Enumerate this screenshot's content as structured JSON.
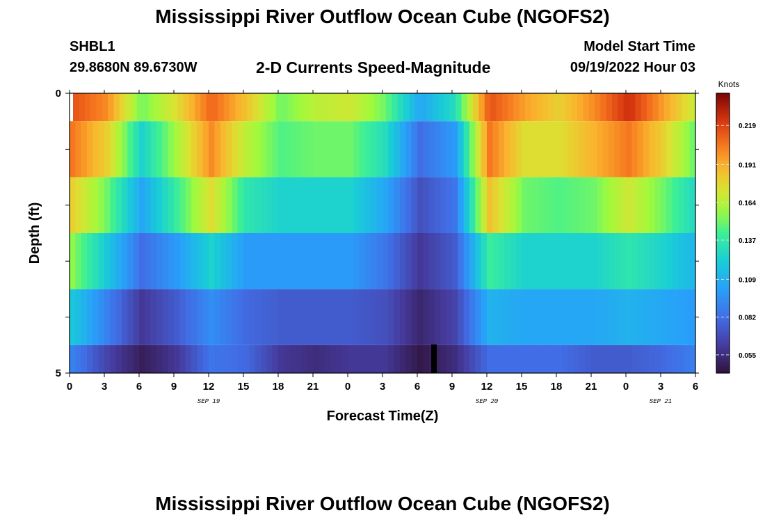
{
  "header": {
    "title": "Mississippi River Outflow Ocean Cube (NGOFS2)",
    "station": "SHBL1",
    "coordinates": "29.8680N  89.6730W",
    "subtitle": "2-D Currents Speed-Magnitude",
    "model_start_label": "Model Start Time",
    "model_start_value": "09/19/2022 Hour 03"
  },
  "footer": {
    "next_title": "Mississippi River Outflow Ocean Cube (NGOFS2)"
  },
  "chart_data": {
    "type": "heatmap",
    "title": "2-D Currents Speed-Magnitude",
    "xlabel": "Forecast Time(Z)",
    "ylabel": "Depth (ft)",
    "x_tick_labels": [
      "0",
      "3",
      "6",
      "9",
      "12",
      "15",
      "18",
      "21",
      "0",
      "3",
      "6",
      "9",
      "12",
      "15",
      "18",
      "21",
      "0",
      "3",
      "6"
    ],
    "x_tick_hours": [
      0,
      3,
      6,
      9,
      12,
      15,
      18,
      21,
      24,
      27,
      30,
      33,
      36,
      39,
      42,
      45,
      48,
      51,
      54
    ],
    "date_labels": [
      {
        "label": "SEP 19",
        "hour": 12
      },
      {
        "label": "SEP 20",
        "hour": 36
      },
      {
        "label": "SEP 21",
        "hour": 51
      }
    ],
    "xlim": [
      0,
      54
    ],
    "y_tick_labels": [
      "0",
      "5"
    ],
    "ylim": [
      0,
      5
    ],
    "colorbar": {
      "label": "Knots",
      "ticks": [
        0.055,
        0.082,
        0.109,
        0.137,
        0.164,
        0.191,
        0.219
      ],
      "range": [
        0.042,
        0.242
      ]
    },
    "time_hours": [
      0,
      3,
      6,
      9,
      12,
      15,
      18,
      21,
      24,
      27,
      30,
      33,
      36,
      39,
      42,
      45,
      48,
      51,
      54
    ],
    "layer_speeds": [
      {
        "depth_range": [
          0.0,
          0.5
        ],
        "values": [
          0.215,
          0.2,
          0.15,
          0.175,
          0.21,
          0.185,
          0.15,
          0.165,
          0.17,
          0.15,
          0.105,
          0.13,
          0.215,
          0.195,
          0.18,
          0.2,
          0.225,
          0.195,
          0.165
        ]
      },
      {
        "depth_range": [
          0.5,
          1.5
        ],
        "values": [
          0.205,
          0.18,
          0.125,
          0.16,
          0.2,
          0.165,
          0.145,
          0.15,
          0.15,
          0.13,
          0.082,
          0.1,
          0.205,
          0.175,
          0.175,
          0.19,
          0.205,
          0.18,
          0.145
        ]
      },
      {
        "depth_range": [
          1.5,
          2.5
        ],
        "values": [
          0.18,
          0.15,
          0.105,
          0.14,
          0.175,
          0.135,
          0.125,
          0.125,
          0.125,
          0.105,
          0.07,
          0.085,
          0.185,
          0.15,
          0.145,
          0.15,
          0.17,
          0.15,
          0.125
        ]
      },
      {
        "depth_range": [
          2.5,
          3.5
        ],
        "values": [
          0.155,
          0.12,
          0.082,
          0.1,
          0.125,
          0.1,
          0.1,
          0.1,
          0.1,
          0.085,
          0.06,
          0.075,
          0.14,
          0.125,
          0.125,
          0.125,
          0.135,
          0.125,
          0.11
        ]
      },
      {
        "depth_range": [
          3.5,
          4.5
        ],
        "values": [
          0.12,
          0.09,
          0.06,
          0.075,
          0.095,
          0.08,
          0.075,
          0.075,
          0.075,
          0.07,
          0.052,
          0.065,
          0.11,
          0.105,
          0.105,
          0.105,
          0.11,
          0.105,
          0.1
        ]
      },
      {
        "depth_range": [
          4.5,
          5.0
        ],
        "values": [
          0.09,
          0.065,
          0.048,
          0.06,
          0.085,
          0.08,
          0.06,
          0.055,
          0.06,
          0.06,
          0.045,
          0.055,
          0.082,
          0.082,
          0.082,
          0.075,
          0.075,
          0.08,
          0.09
        ]
      }
    ],
    "grid": false,
    "legend": "colorbar-right"
  }
}
